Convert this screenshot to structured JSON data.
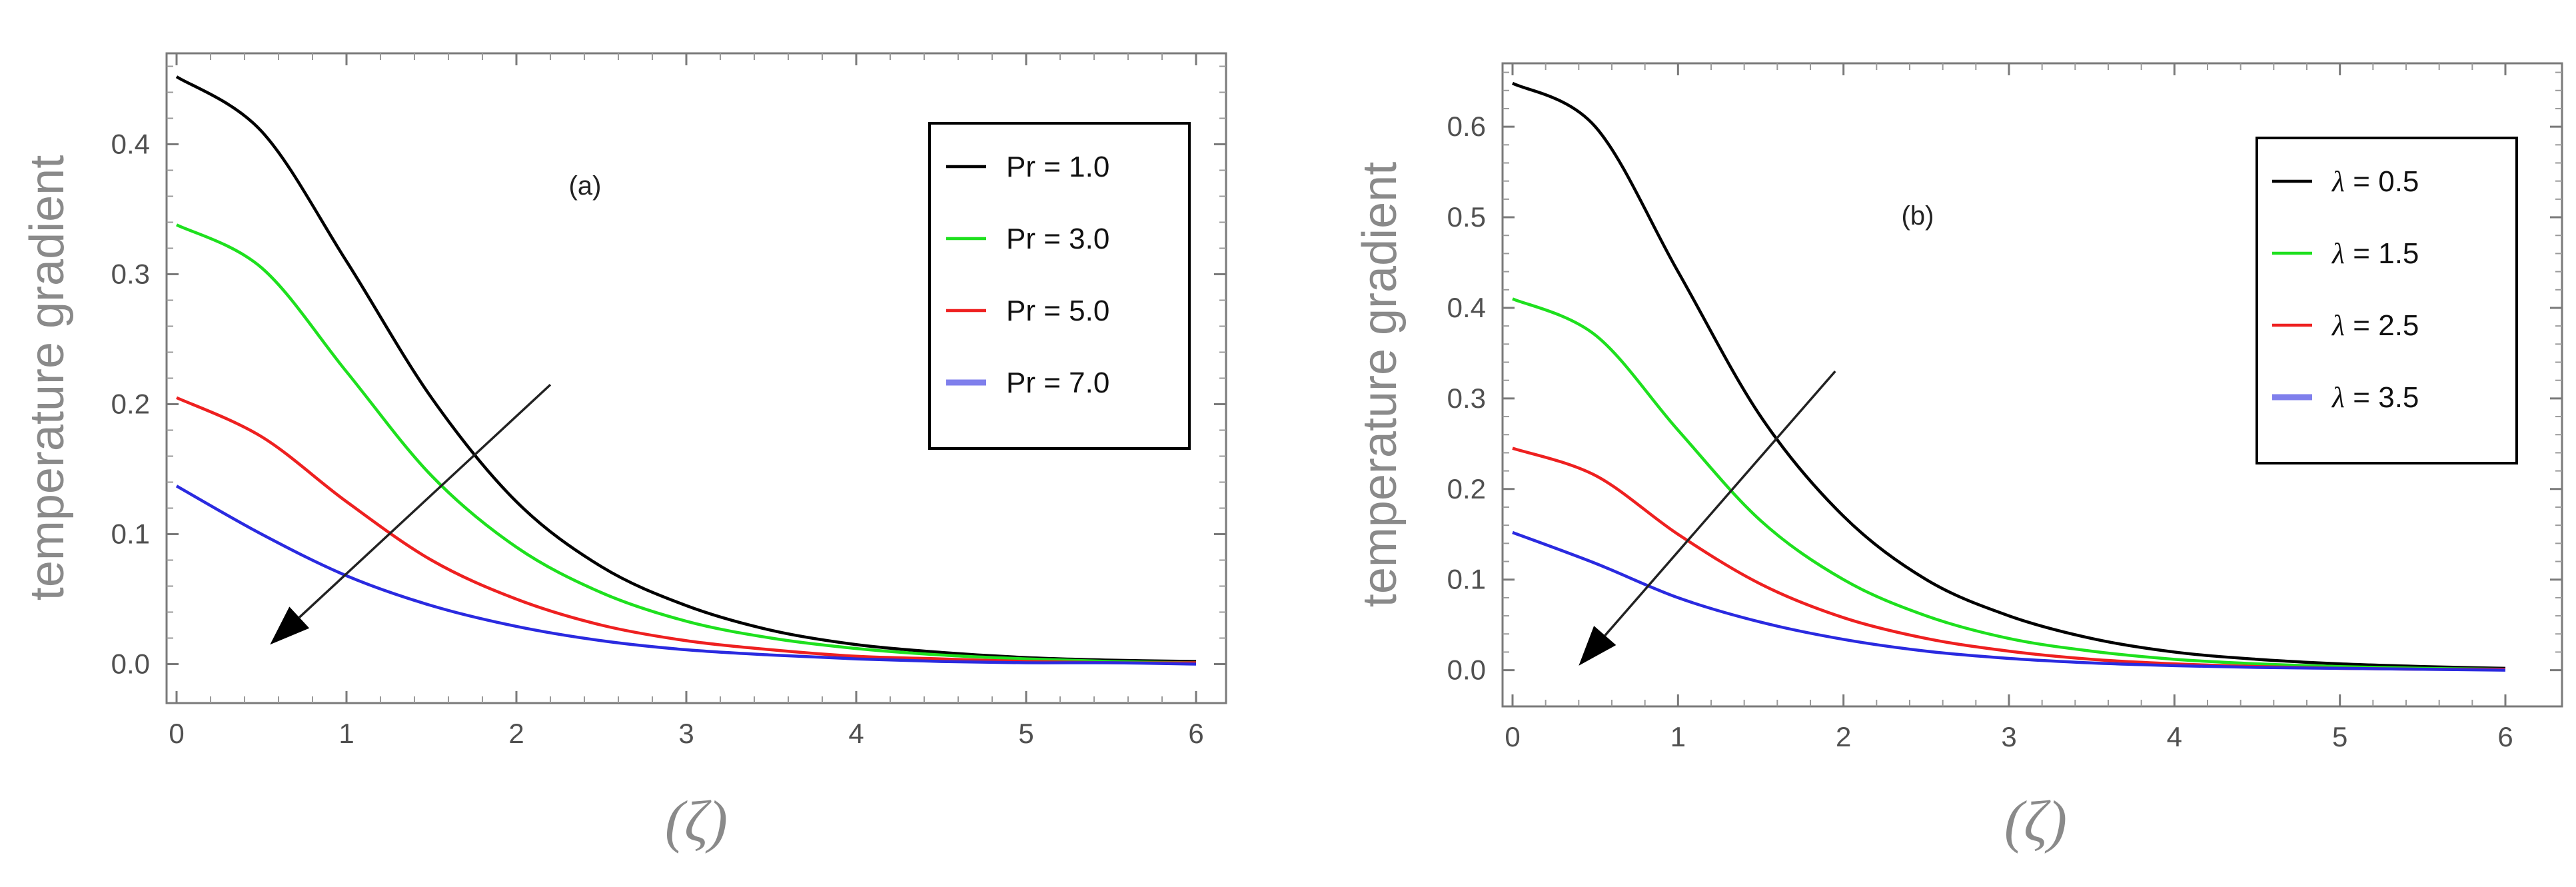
{
  "chart_data": [
    {
      "type": "line",
      "panel_label": "(a)",
      "xlabel": "(ζ)",
      "ylabel": "temperature gradient",
      "xlim": [
        0,
        6
      ],
      "ylim": [
        -0.03,
        0.47
      ],
      "x_ticks": [
        "0",
        "1",
        "2",
        "3",
        "4",
        "5",
        "6"
      ],
      "y_ticks": [
        "0.0",
        "0.1",
        "0.2",
        "0.3",
        "0.4"
      ],
      "legend_title": "",
      "legend_position": "top-right",
      "arrow": {
        "from": [
          2.2,
          0.215
        ],
        "to": [
          0.55,
          0.015
        ],
        "meaning": "increasing Pr"
      },
      "series": [
        {
          "name": "Pr = 1.0",
          "legend_param": "Pr",
          "legend_value": "1.0",
          "color": "#000000",
          "x": [
            0,
            0.5,
            1,
            1.5,
            2,
            2.5,
            3,
            3.5,
            4,
            4.5,
            5,
            5.5,
            6
          ],
          "y": [
            0.452,
            0.41,
            0.31,
            0.205,
            0.125,
            0.075,
            0.045,
            0.026,
            0.015,
            0.009,
            0.005,
            0.003,
            0.002
          ]
        },
        {
          "name": "Pr = 3.0",
          "legend_param": "Pr",
          "legend_value": "3.0",
          "color": "#1ee01e",
          "x": [
            0,
            0.5,
            1,
            1.5,
            2,
            2.5,
            3,
            3.5,
            4,
            4.5,
            5,
            5.5,
            6
          ],
          "y": [
            0.338,
            0.305,
            0.225,
            0.145,
            0.09,
            0.055,
            0.033,
            0.02,
            0.012,
            0.007,
            0.004,
            0.002,
            0.001
          ]
        },
        {
          "name": "Pr = 5.0",
          "legend_param": "Pr",
          "legend_value": "5.0",
          "color": "#ee2020",
          "x": [
            0,
            0.5,
            1,
            1.5,
            2,
            2.5,
            3,
            3.5,
            4,
            4.5,
            5,
            5.5,
            6
          ],
          "y": [
            0.205,
            0.175,
            0.125,
            0.08,
            0.05,
            0.03,
            0.018,
            0.011,
            0.006,
            0.004,
            0.002,
            0.001,
            0.001
          ]
        },
        {
          "name": "Pr = 7.0",
          "legend_param": "Pr",
          "legend_value": "7.0",
          "color": "#2a2ae0",
          "x": [
            0,
            0.5,
            1,
            1.5,
            2,
            2.5,
            3,
            3.5,
            4,
            4.5,
            5,
            5.5,
            6
          ],
          "y": [
            0.137,
            0.1,
            0.068,
            0.045,
            0.029,
            0.018,
            0.011,
            0.007,
            0.004,
            0.002,
            0.001,
            0.001,
            0.0
          ]
        }
      ]
    },
    {
      "type": "line",
      "panel_label": "(b)",
      "xlabel": "(ζ)",
      "ylabel": "temperature gradient",
      "xlim": [
        0,
        6
      ],
      "ylim": [
        -0.04,
        0.67
      ],
      "x_ticks": [
        "0",
        "1",
        "2",
        "3",
        "4",
        "5",
        "6"
      ],
      "y_ticks": [
        "0.0",
        "0.1",
        "0.2",
        "0.3",
        "0.4",
        "0.5",
        "0.6"
      ],
      "legend_title": "",
      "legend_position": "top-right",
      "arrow": {
        "from": [
          1.95,
          0.33
        ],
        "to": [
          0.4,
          0.005
        ],
        "meaning": "increasing λ"
      },
      "series": [
        {
          "name": "λ = 0.5",
          "legend_param": "λ",
          "legend_value": "0.5",
          "color": "#000000",
          "x": [
            0,
            0.5,
            1,
            1.5,
            2,
            2.5,
            3,
            3.5,
            4,
            4.5,
            5,
            5.5,
            6
          ],
          "y": [
            0.648,
            0.6,
            0.44,
            0.28,
            0.17,
            0.1,
            0.06,
            0.035,
            0.02,
            0.012,
            0.007,
            0.004,
            0.002
          ]
        },
        {
          "name": "λ = 1.5",
          "legend_param": "λ",
          "legend_value": "1.5",
          "color": "#1ee01e",
          "x": [
            0,
            0.5,
            1,
            1.5,
            2,
            2.5,
            3,
            3.5,
            4,
            4.5,
            5,
            5.5,
            6
          ],
          "y": [
            0.41,
            0.37,
            0.265,
            0.165,
            0.1,
            0.06,
            0.035,
            0.021,
            0.012,
            0.007,
            0.004,
            0.002,
            0.001
          ]
        },
        {
          "name": "λ = 2.5",
          "legend_param": "λ",
          "legend_value": "2.5",
          "color": "#ee2020",
          "x": [
            0,
            0.5,
            1,
            1.5,
            2,
            2.5,
            3,
            3.5,
            4,
            4.5,
            5,
            5.5,
            6
          ],
          "y": [
            0.245,
            0.215,
            0.15,
            0.095,
            0.058,
            0.035,
            0.021,
            0.012,
            0.007,
            0.004,
            0.002,
            0.001,
            0.001
          ]
        },
        {
          "name": "λ = 3.5",
          "legend_param": "λ",
          "legend_value": "3.5",
          "color": "#2a2ae0",
          "x": [
            0,
            0.5,
            1,
            1.5,
            2,
            2.5,
            3,
            3.5,
            4,
            4.5,
            5,
            5.5,
            6
          ],
          "y": [
            0.152,
            0.118,
            0.08,
            0.053,
            0.034,
            0.021,
            0.013,
            0.008,
            0.005,
            0.003,
            0.002,
            0.001,
            0.0
          ]
        }
      ]
    }
  ]
}
